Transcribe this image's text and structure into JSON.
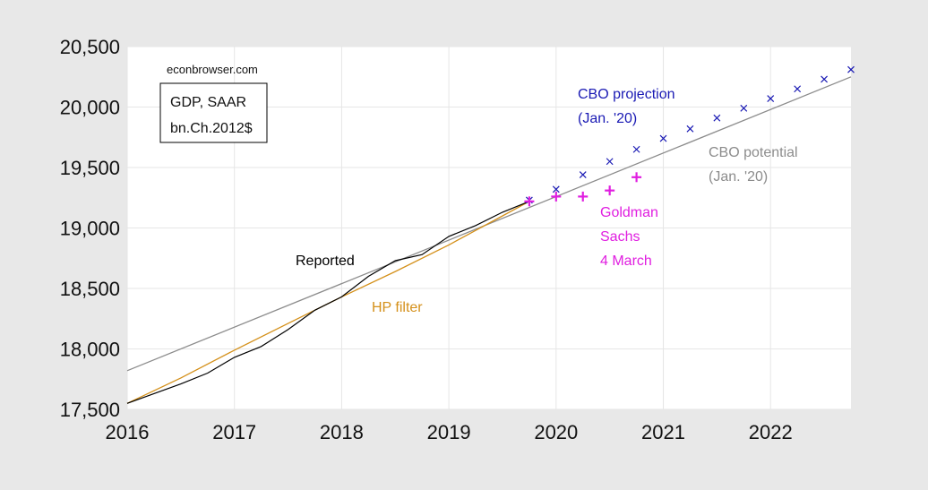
{
  "chart_data": {
    "type": "line",
    "site": "econbrowser.com",
    "box": [
      "GDP, SAAR",
      "bn.Ch.2012$"
    ],
    "xlim": [
      2016,
      2022.75
    ],
    "ylim": [
      17500,
      20500
    ],
    "x_ticks": [
      2016,
      2017,
      2018,
      2019,
      2020,
      2021,
      2022
    ],
    "y_ticks": [
      17500,
      18000,
      18500,
      19000,
      19500,
      20000,
      20500
    ],
    "grid": true,
    "colors": {
      "reported": "#000000",
      "hp": "#d4901a",
      "potential": "#8c8c8c",
      "cbo": "#1a1ab4",
      "goldman": "#e01ee0"
    },
    "annotations": [
      {
        "lines": [
          "Reported"
        ],
        "key": "reported"
      },
      {
        "lines": [
          "HP filter"
        ],
        "key": "hp"
      },
      {
        "lines": [
          "CBO projection",
          "(Jan. '20)"
        ],
        "key": "cbo"
      },
      {
        "lines": [
          "CBO potential",
          "(Jan. '20)"
        ],
        "key": "potential"
      },
      {
        "lines": [
          "Goldman",
          "Sachs",
          "4 March"
        ],
        "key": "goldman"
      }
    ],
    "series": [
      {
        "key": "reported",
        "style": "line",
        "x": [
          2016.0,
          2016.25,
          2016.5,
          2016.75,
          2017.0,
          2017.25,
          2017.5,
          2017.75,
          2018.0,
          2018.25,
          2018.5,
          2018.75,
          2019.0,
          2019.25,
          2019.5,
          2019.75
        ],
        "y": [
          17550,
          17630,
          17710,
          17800,
          17930,
          18020,
          18160,
          18320,
          18430,
          18600,
          18730,
          18780,
          18930,
          19020,
          19130,
          19220
        ]
      },
      {
        "key": "hp",
        "style": "line",
        "x": [
          2016.0,
          2016.5,
          2017.0,
          2017.5,
          2018.0,
          2018.5,
          2019.0,
          2019.5,
          2019.75
        ],
        "y": [
          17550,
          17760,
          17990,
          18210,
          18430,
          18640,
          18860,
          19100,
          19220
        ]
      },
      {
        "key": "potential",
        "style": "line",
        "x": [
          2016.0,
          2022.75
        ],
        "y": [
          17820,
          20250
        ]
      },
      {
        "key": "cbo",
        "style": "x",
        "x": [
          2019.75,
          2020.0,
          2020.25,
          2020.5,
          2020.75,
          2021.0,
          2021.25,
          2021.5,
          2021.75,
          2022.0,
          2022.25,
          2022.5,
          2022.75
        ],
        "y": [
          19230,
          19320,
          19440,
          19550,
          19650,
          19740,
          19820,
          19910,
          19990,
          20070,
          20150,
          20230,
          20310
        ]
      },
      {
        "key": "goldman",
        "style": "plus",
        "x": [
          2019.75,
          2020.0,
          2020.25,
          2020.5,
          2020.75
        ],
        "y": [
          19220,
          19260,
          19260,
          19310,
          19420
        ]
      }
    ]
  }
}
